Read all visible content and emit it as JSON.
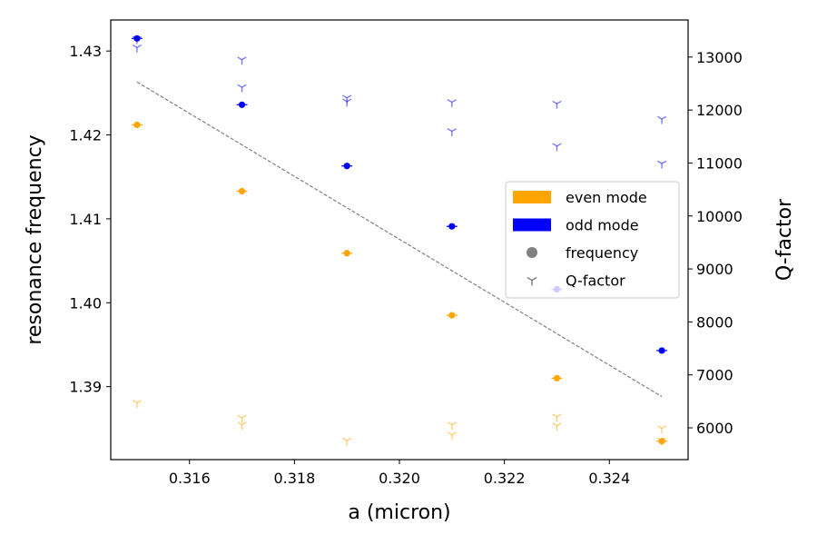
{
  "chart_data": {
    "type": "scatter",
    "xlabel": "a (micron)",
    "ylabel_left": "resonance frequency",
    "ylabel_right": "Q-factor",
    "xlim": [
      0.3145,
      0.3255
    ],
    "ylim_left": [
      1.3813,
      1.4337
    ],
    "ylim_right": [
      5400,
      13700
    ],
    "x_ticks": [
      0.316,
      0.318,
      0.32,
      0.322,
      0.324
    ],
    "x_tick_labels": [
      "0.316",
      "0.318",
      "0.320",
      "0.322",
      "0.324"
    ],
    "y_left_ticks": [
      1.39,
      1.4,
      1.41,
      1.42,
      1.43
    ],
    "y_left_tick_labels": [
      "1.39",
      "1.40",
      "1.41",
      "1.42",
      "1.43"
    ],
    "y_right_ticks": [
      6000,
      7000,
      8000,
      9000,
      10000,
      11000,
      12000,
      13000
    ],
    "y_right_tick_labels": [
      "6000",
      "7000",
      "8000",
      "9000",
      "10000",
      "11000",
      "12000",
      "13000"
    ],
    "grid": false,
    "legend": {
      "position": "center-right",
      "entries": [
        {
          "label": "even mode",
          "kind": "patch",
          "color": "#FFA500"
        },
        {
          "label": "odd mode",
          "kind": "patch",
          "color": "#0000FF"
        },
        {
          "label": "frequency",
          "kind": "circle",
          "color": "#808080"
        },
        {
          "label": "Q-factor",
          "kind": "tri",
          "color": "#808080"
        }
      ]
    },
    "frequency_series": [
      {
        "name": "even mode",
        "color": "#FFA500",
        "x": [
          0.315,
          0.317,
          0.319,
          0.321,
          0.323,
          0.325
        ],
        "y": [
          1.4212,
          1.4133,
          1.4059,
          1.3985,
          1.391,
          1.3835
        ]
      },
      {
        "name": "odd mode",
        "color": "#0000FF",
        "x": [
          0.315,
          0.317,
          0.319,
          0.321,
          0.323,
          0.325
        ],
        "y": [
          1.4315,
          1.4236,
          1.4163,
          1.4091,
          1.4016,
          1.3943
        ]
      }
    ],
    "qfactor_series": [
      {
        "name": "even mode",
        "color": "#FFA500",
        "x": [
          0.315,
          0.317,
          0.317,
          0.319,
          0.321,
          0.321,
          0.323,
          0.323,
          0.325,
          0.325
        ],
        "y": [
          6470,
          6190,
          6060,
          5760,
          6060,
          5870,
          6210,
          6040,
          5990,
          5760
        ]
      },
      {
        "name": "odd mode",
        "color": "#0000FF",
        "x": [
          0.315,
          0.315,
          0.317,
          0.317,
          0.319,
          0.319,
          0.321,
          0.321,
          0.323,
          0.323,
          0.325,
          0.325
        ],
        "y": [
          13340,
          13180,
          12950,
          12430,
          12230,
          12160,
          12150,
          11600,
          12120,
          11320,
          11830,
          10990
        ]
      }
    ],
    "trend_line": {
      "x": [
        0.315,
        0.325
      ],
      "y": [
        12530,
        6590
      ],
      "axis": "right",
      "color": "#808080",
      "style": "dashed"
    }
  }
}
